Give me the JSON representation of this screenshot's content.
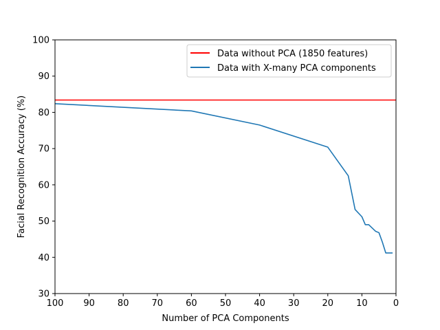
{
  "chart_data": {
    "type": "line",
    "title": "",
    "xlabel": "Number of PCA Components",
    "ylabel": "Facial Recognition Accuracy (%)",
    "xlim": [
      100,
      0
    ],
    "ylim": [
      30,
      100
    ],
    "x_inverted": true,
    "xticks": [
      100,
      90,
      80,
      70,
      60,
      50,
      40,
      30,
      20,
      10,
      0
    ],
    "yticks": [
      30,
      40,
      50,
      60,
      70,
      80,
      90,
      100
    ],
    "xtick_labels": [
      "100",
      "90",
      "80",
      "70",
      "60",
      "50",
      "40",
      "30",
      "20",
      "10",
      "0"
    ],
    "ytick_labels": [
      "30",
      "40",
      "50",
      "60",
      "70",
      "80",
      "90",
      "100"
    ],
    "grid": false,
    "legend_position": "top-right",
    "series": [
      {
        "name": "Data without PCA (1850 features)",
        "color": "#ff0000",
        "kind": "hline",
        "x": [
          100,
          0
        ],
        "values": [
          83.4,
          83.4
        ]
      },
      {
        "name": "Data with X-many PCA components",
        "color": "#1f77b4",
        "kind": "line",
        "x": [
          100,
          60,
          40,
          20,
          14,
          12,
          10,
          9,
          8,
          6,
          5,
          4,
          3,
          2,
          1
        ],
        "values": [
          82.4,
          80.4,
          76.5,
          70.4,
          62.5,
          53.2,
          51.2,
          49.0,
          49.0,
          47.2,
          46.8,
          44.2,
          41.2,
          41.2,
          41.2
        ]
      }
    ]
  }
}
